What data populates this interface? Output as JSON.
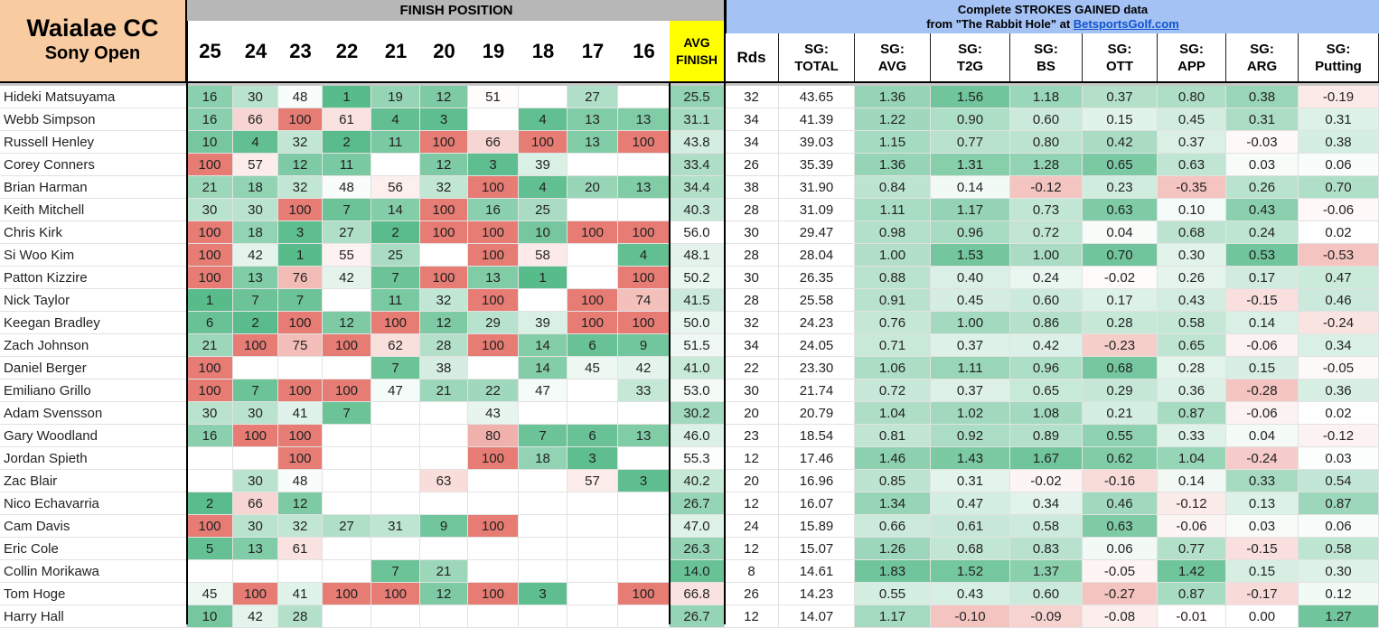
{
  "title": {
    "course": "Waialae CC",
    "event": "Sony Open"
  },
  "finish_header": "FINISH POSITION",
  "years": [
    "25",
    "24",
    "23",
    "22",
    "21",
    "20",
    "19",
    "18",
    "17",
    "16"
  ],
  "avg_finish_header": [
    "AVG",
    "FINISH"
  ],
  "sg_header": {
    "line1_a": "Complete ",
    "line1_b": "STROKES GAINED",
    "line1_c": " data",
    "line2_a": "from \"The Rabbit Hole\" at ",
    "link": "BetsportsGolf.com"
  },
  "stat_headers": [
    [
      "Rds",
      ""
    ],
    [
      "SG:",
      "TOTAL"
    ],
    [
      "SG:",
      "AVG"
    ],
    [
      "SG:",
      "T2G"
    ],
    [
      "SG:",
      "BS"
    ],
    [
      "SG:",
      "OTT"
    ],
    [
      "SG:",
      "APP"
    ],
    [
      "SG:",
      "ARG"
    ],
    [
      "SG:",
      "Putting"
    ]
  ],
  "colors": {
    "green": "#57bb8a",
    "red": "#e67c73",
    "white": "#ffffff",
    "title_bg": "#f8cba1",
    "sg_header_bg": "#a4c2f4",
    "finish_header_bg": "#b7b7b7",
    "avg_header_bg": "#ffff00"
  },
  "players": [
    {
      "name": "Hideki Matsuyama",
      "finishes": [
        "16",
        "30",
        "48",
        "1",
        "19",
        "12",
        "51",
        "",
        "27",
        ""
      ],
      "avg": "25.5",
      "rds": "32",
      "sg": [
        "43.65",
        "1.36",
        "1.56",
        "1.18",
        "0.37",
        "0.80",
        "0.38",
        "-0.19"
      ]
    },
    {
      "name": "Webb Simpson",
      "finishes": [
        "16",
        "66",
        "100",
        "61",
        "4",
        "3",
        "",
        "4",
        "13",
        "13"
      ],
      "avg": "31.1",
      "rds": "34",
      "sg": [
        "41.39",
        "1.22",
        "0.90",
        "0.60",
        "0.15",
        "0.45",
        "0.31",
        "0.31"
      ]
    },
    {
      "name": "Russell Henley",
      "finishes": [
        "10",
        "4",
        "32",
        "2",
        "11",
        "100",
        "66",
        "100",
        "13",
        "100"
      ],
      "avg": "43.8",
      "rds": "34",
      "sg": [
        "39.03",
        "1.15",
        "0.77",
        "0.80",
        "0.42",
        "0.37",
        "-0.03",
        "0.38"
      ]
    },
    {
      "name": "Corey Conners",
      "finishes": [
        "100",
        "57",
        "12",
        "11",
        "",
        "12",
        "3",
        "39",
        "",
        ""
      ],
      "avg": "33.4",
      "rds": "26",
      "sg": [
        "35.39",
        "1.36",
        "1.31",
        "1.28",
        "0.65",
        "0.63",
        "0.03",
        "0.06"
      ]
    },
    {
      "name": "Brian Harman",
      "finishes": [
        "21",
        "18",
        "32",
        "48",
        "56",
        "32",
        "100",
        "4",
        "20",
        "13"
      ],
      "avg": "34.4",
      "rds": "38",
      "sg": [
        "31.90",
        "0.84",
        "0.14",
        "-0.12",
        "0.23",
        "-0.35",
        "0.26",
        "0.70"
      ]
    },
    {
      "name": "Keith Mitchell",
      "finishes": [
        "30",
        "30",
        "100",
        "7",
        "14",
        "100",
        "16",
        "25",
        "",
        ""
      ],
      "avg": "40.3",
      "rds": "28",
      "sg": [
        "31.09",
        "1.11",
        "1.17",
        "0.73",
        "0.63",
        "0.10",
        "0.43",
        "-0.06"
      ]
    },
    {
      "name": "Chris Kirk",
      "finishes": [
        "100",
        "18",
        "3",
        "27",
        "2",
        "100",
        "100",
        "10",
        "100",
        "100"
      ],
      "avg": "56.0",
      "rds": "30",
      "sg": [
        "29.47",
        "0.98",
        "0.96",
        "0.72",
        "0.04",
        "0.68",
        "0.24",
        "0.02"
      ]
    },
    {
      "name": "Si Woo Kim",
      "finishes": [
        "100",
        "42",
        "1",
        "55",
        "25",
        "",
        "100",
        "58",
        "",
        "4"
      ],
      "avg": "48.1",
      "rds": "28",
      "sg": [
        "28.04",
        "1.00",
        "1.53",
        "1.00",
        "0.70",
        "0.30",
        "0.53",
        "-0.53"
      ]
    },
    {
      "name": "Patton Kizzire",
      "finishes": [
        "100",
        "13",
        "76",
        "42",
        "7",
        "100",
        "13",
        "1",
        "",
        "100"
      ],
      "avg": "50.2",
      "rds": "30",
      "sg": [
        "26.35",
        "0.88",
        "0.40",
        "0.24",
        "-0.02",
        "0.26",
        "0.17",
        "0.47"
      ]
    },
    {
      "name": "Nick Taylor",
      "finishes": [
        "1",
        "7",
        "7",
        "",
        "11",
        "32",
        "100",
        "",
        "100",
        "74"
      ],
      "avg": "41.5",
      "rds": "28",
      "sg": [
        "25.58",
        "0.91",
        "0.45",
        "0.60",
        "0.17",
        "0.43",
        "-0.15",
        "0.46"
      ]
    },
    {
      "name": "Keegan Bradley",
      "finishes": [
        "6",
        "2",
        "100",
        "12",
        "100",
        "12",
        "29",
        "39",
        "100",
        "100"
      ],
      "avg": "50.0",
      "rds": "32",
      "sg": [
        "24.23",
        "0.76",
        "1.00",
        "0.86",
        "0.28",
        "0.58",
        "0.14",
        "-0.24"
      ]
    },
    {
      "name": "Zach Johnson",
      "finishes": [
        "21",
        "100",
        "75",
        "100",
        "62",
        "28",
        "100",
        "14",
        "6",
        "9"
      ],
      "avg": "51.5",
      "rds": "34",
      "sg": [
        "24.05",
        "0.71",
        "0.37",
        "0.42",
        "-0.23",
        "0.65",
        "-0.06",
        "0.34"
      ]
    },
    {
      "name": "Daniel Berger",
      "finishes": [
        "100",
        "",
        "",
        "",
        "7",
        "38",
        "",
        "14",
        "45",
        "42"
      ],
      "avg": "41.0",
      "rds": "22",
      "sg": [
        "23.30",
        "1.06",
        "1.11",
        "0.96",
        "0.68",
        "0.28",
        "0.15",
        "-0.05"
      ]
    },
    {
      "name": "Emiliano Grillo",
      "finishes": [
        "100",
        "7",
        "100",
        "100",
        "47",
        "21",
        "22",
        "47",
        "",
        "33"
      ],
      "avg": "53.0",
      "rds": "30",
      "sg": [
        "21.74",
        "0.72",
        "0.37",
        "0.65",
        "0.29",
        "0.36",
        "-0.28",
        "0.36"
      ]
    },
    {
      "name": "Adam Svensson",
      "finishes": [
        "30",
        "30",
        "41",
        "7",
        "",
        "",
        "43",
        "",
        "",
        ""
      ],
      "avg": "30.2",
      "rds": "20",
      "sg": [
        "20.79",
        "1.04",
        "1.02",
        "1.08",
        "0.21",
        "0.87",
        "-0.06",
        "0.02"
      ]
    },
    {
      "name": "Gary Woodland",
      "finishes": [
        "16",
        "100",
        "100",
        "",
        "",
        "",
        "80",
        "7",
        "6",
        "13"
      ],
      "avg": "46.0",
      "rds": "23",
      "sg": [
        "18.54",
        "0.81",
        "0.92",
        "0.89",
        "0.55",
        "0.33",
        "0.04",
        "-0.12"
      ]
    },
    {
      "name": "Jordan Spieth",
      "finishes": [
        "",
        "",
        "100",
        "",
        "",
        "",
        "100",
        "18",
        "3",
        ""
      ],
      "avg": "55.3",
      "rds": "12",
      "sg": [
        "17.46",
        "1.46",
        "1.43",
        "1.67",
        "0.62",
        "1.04",
        "-0.24",
        "0.03"
      ]
    },
    {
      "name": "Zac Blair",
      "finishes": [
        "",
        "30",
        "48",
        "",
        "",
        "63",
        "",
        "",
        "57",
        "3"
      ],
      "avg": "40.2",
      "rds": "20",
      "sg": [
        "16.96",
        "0.85",
        "0.31",
        "-0.02",
        "-0.16",
        "0.14",
        "0.33",
        "0.54"
      ]
    },
    {
      "name": "Nico Echavarria",
      "finishes": [
        "2",
        "66",
        "12",
        "",
        "",
        "",
        "",
        "",
        "",
        ""
      ],
      "avg": "26.7",
      "rds": "12",
      "sg": [
        "16.07",
        "1.34",
        "0.47",
        "0.34",
        "0.46",
        "-0.12",
        "0.13",
        "0.87"
      ]
    },
    {
      "name": "Cam Davis",
      "finishes": [
        "100",
        "30",
        "32",
        "27",
        "31",
        "9",
        "100",
        "",
        "",
        ""
      ],
      "avg": "47.0",
      "rds": "24",
      "sg": [
        "15.89",
        "0.66",
        "0.61",
        "0.58",
        "0.63",
        "-0.06",
        "0.03",
        "0.06"
      ]
    },
    {
      "name": "Eric Cole",
      "finishes": [
        "5",
        "13",
        "61",
        "",
        "",
        "",
        "",
        "",
        "",
        ""
      ],
      "avg": "26.3",
      "rds": "12",
      "sg": [
        "15.07",
        "1.26",
        "0.68",
        "0.83",
        "0.06",
        "0.77",
        "-0.15",
        "0.58"
      ]
    },
    {
      "name": "Collin Morikawa",
      "finishes": [
        "",
        "",
        "",
        "",
        "7",
        "21",
        "",
        "",
        "",
        ""
      ],
      "avg": "14.0",
      "rds": "8",
      "sg": [
        "14.61",
        "1.83",
        "1.52",
        "1.37",
        "-0.05",
        "1.42",
        "0.15",
        "0.30"
      ]
    },
    {
      "name": "Tom Hoge",
      "finishes": [
        "45",
        "100",
        "41",
        "100",
        "100",
        "12",
        "100",
        "3",
        "",
        "100"
      ],
      "avg": "66.8",
      "rds": "26",
      "sg": [
        "14.23",
        "0.55",
        "0.43",
        "0.60",
        "-0.27",
        "0.87",
        "-0.17",
        "0.12"
      ]
    },
    {
      "name": "Harry Hall",
      "finishes": [
        "10",
        "42",
        "28",
        "",
        "",
        "",
        "",
        "",
        "",
        ""
      ],
      "avg": "26.7",
      "rds": "12",
      "sg": [
        "14.07",
        "1.17",
        "-0.10",
        "-0.09",
        "-0.08",
        "-0.01",
        "0.00",
        "1.27"
      ]
    }
  ]
}
